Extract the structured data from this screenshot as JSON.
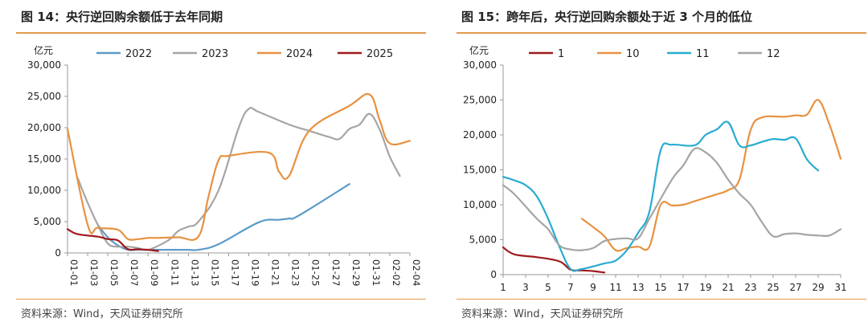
{
  "panels": [
    {
      "fig_title": "图 14：央行逆回购余额低于去年同期",
      "source": "资料来源：Wind，天风证券研究所"
    },
    {
      "fig_title": "图 15：跨年后，央行逆回购余额处于近 3 个月的低位",
      "source": "资料来源：Wind，天风证券研究所"
    }
  ],
  "chart_data": [
    {
      "type": "line",
      "title": "图 14：央行逆回购余额低于去年同期",
      "ylabel": "亿元",
      "xlabel": "",
      "ylim": [
        0,
        30000
      ],
      "yticks": [
        0,
        5000,
        10000,
        15000,
        20000,
        25000,
        30000
      ],
      "ytick_labels": [
        "0",
        "5,000",
        "10,000",
        "15,000",
        "20,000",
        "25,000",
        "30,000"
      ],
      "xticks": [
        "01-01",
        "01-03",
        "01-05",
        "01-07",
        "01-09",
        "01-11",
        "01-13",
        "01-15",
        "01-17",
        "01-19",
        "01-21",
        "01-23",
        "01-25",
        "01-27",
        "01-29",
        "01-31",
        "02-02",
        "02-04"
      ],
      "xtick_rotation": -90,
      "grid": false,
      "legend_position": "top",
      "series": [
        {
          "name": "2022",
          "color": "#5b9bc8",
          "points": [
            [
              4,
              4500
            ],
            [
              5,
              2500
            ],
            [
              6,
              1200
            ],
            [
              7,
              500
            ],
            [
              8,
              500
            ],
            [
              9,
              500
            ],
            [
              10,
              500
            ],
            [
              11,
              500
            ],
            [
              12,
              500
            ],
            [
              13,
              500
            ],
            [
              14,
              500
            ],
            [
              16,
              1400
            ],
            [
              20,
              4900
            ],
            [
              22,
              5300
            ],
            [
              23,
              5500
            ],
            [
              24,
              6000
            ],
            [
              29,
              11000
            ]
          ]
        },
        {
          "name": "2023",
          "color": "#a5a5a5",
          "points": [
            [
              2,
              12000
            ],
            [
              3,
              8000
            ],
            [
              4,
              4500
            ],
            [
              5,
              1500
            ],
            [
              6,
              1000
            ],
            [
              7,
              1000
            ],
            [
              8,
              800
            ],
            [
              9,
              500
            ],
            [
              11,
              2000
            ],
            [
              12,
              3500
            ],
            [
              13,
              4200
            ],
            [
              14,
              5000
            ],
            [
              16,
              10000
            ],
            [
              18,
              20000
            ],
            [
              19,
              23000
            ],
            [
              20,
              22500
            ],
            [
              23,
              20500
            ],
            [
              25,
              19500
            ],
            [
              27,
              18500
            ],
            [
              28,
              18200
            ],
            [
              29,
              19800
            ],
            [
              30,
              20500
            ],
            [
              31,
              22200
            ],
            [
              32,
              19700
            ],
            [
              33,
              15400
            ],
            [
              34,
              12300
            ]
          ]
        },
        {
          "name": "2024",
          "color": "#e8913f",
          "points": [
            [
              1,
              19800
            ],
            [
              3,
              4500
            ],
            [
              4,
              4000
            ],
            [
              6,
              3700
            ],
            [
              7,
              2200
            ],
            [
              8,
              2200
            ],
            [
              9,
              2400
            ],
            [
              10,
              2400
            ],
            [
              12,
              2500
            ],
            [
              14,
              2600
            ],
            [
              15,
              9000
            ],
            [
              16,
              14800
            ],
            [
              17,
              15500
            ],
            [
              21,
              16000
            ],
            [
              22,
              13000
            ],
            [
              23,
              12300
            ],
            [
              25,
              19500
            ],
            [
              29,
              23500
            ],
            [
              31,
              25300
            ],
            [
              32,
              21200
            ],
            [
              33,
              17500
            ],
            [
              35,
              17900
            ]
          ]
        },
        {
          "name": "2025",
          "color": "#a01a1e",
          "points": [
            [
              1,
              3800
            ],
            [
              2,
              3000
            ],
            [
              4,
              2600
            ],
            [
              5,
              2200
            ],
            [
              6,
              2000
            ],
            [
              7,
              600
            ],
            [
              8,
              600
            ],
            [
              9,
              500
            ],
            [
              10,
              300
            ]
          ]
        }
      ]
    },
    {
      "type": "line",
      "title": "图 15：跨年后，央行逆回购余额处于近 3 个月的低位",
      "ylabel": "亿元",
      "xlabel": "",
      "ylim": [
        0,
        30000
      ],
      "yticks": [
        0,
        5000,
        10000,
        15000,
        20000,
        25000,
        30000
      ],
      "ytick_labels": [
        "0",
        "5,000",
        "10,000",
        "15,000",
        "20,000",
        "25,000",
        "30,000"
      ],
      "xticks": [
        "1",
        "3",
        "5",
        "7",
        "9",
        "11",
        "13",
        "15",
        "17",
        "19",
        "21",
        "23",
        "25",
        "27",
        "29",
        "31"
      ],
      "xtick_rotation": 0,
      "grid": false,
      "legend_position": "top",
      "series": [
        {
          "name": "1",
          "color": "#a01a1e",
          "points": [
            [
              1,
              3900
            ],
            [
              2,
              2900
            ],
            [
              4,
              2500
            ],
            [
              6,
              1900
            ],
            [
              7,
              700
            ],
            [
              8,
              600
            ],
            [
              9,
              500
            ],
            [
              10,
              300
            ]
          ]
        },
        {
          "name": "10",
          "color": "#e8913f",
          "points": [
            [
              8,
              8000
            ],
            [
              9,
              6800
            ],
            [
              10,
              5500
            ],
            [
              11,
              3500
            ],
            [
              12,
              3800
            ],
            [
              13,
              4000
            ],
            [
              14,
              4000
            ],
            [
              15,
              10000
            ],
            [
              16,
              9900
            ],
            [
              17,
              10000
            ],
            [
              18,
              10500
            ],
            [
              19,
              11000
            ],
            [
              20,
              11500
            ],
            [
              21,
              12100
            ],
            [
              22,
              13600
            ],
            [
              23,
              20700
            ],
            [
              24,
              22500
            ],
            [
              26,
              22600
            ],
            [
              27,
              22800
            ],
            [
              28,
              22900
            ],
            [
              29,
              25000
            ],
            [
              30,
              21500
            ],
            [
              31,
              16600
            ]
          ]
        },
        {
          "name": "11",
          "color": "#29acd0",
          "points": [
            [
              1,
              14000
            ],
            [
              2,
              13500
            ],
            [
              3,
              12800
            ],
            [
              4,
              11200
            ],
            [
              5,
              8000
            ],
            [
              6,
              4000
            ],
            [
              7,
              800
            ],
            [
              8,
              800
            ],
            [
              10,
              1600
            ],
            [
              11,
              2000
            ],
            [
              12,
              3500
            ],
            [
              13,
              6000
            ],
            [
              14,
              9000
            ],
            [
              15,
              17800
            ],
            [
              16,
              18600
            ],
            [
              18,
              18500
            ],
            [
              19,
              20000
            ],
            [
              20,
              20800
            ],
            [
              21,
              21800
            ],
            [
              22,
              18500
            ],
            [
              23,
              18500
            ],
            [
              24,
              19000
            ],
            [
              25,
              19400
            ],
            [
              26,
              19300
            ],
            [
              27,
              19500
            ],
            [
              28,
              16500
            ],
            [
              29,
              14900
            ]
          ]
        },
        {
          "name": "12",
          "color": "#a5a5a5",
          "points": [
            [
              1,
              12800
            ],
            [
              2,
              11500
            ],
            [
              4,
              8000
            ],
            [
              5,
              6500
            ],
            [
              6,
              4200
            ],
            [
              7,
              3600
            ],
            [
              8,
              3500
            ],
            [
              9,
              3800
            ],
            [
              10,
              4800
            ],
            [
              11,
              5100
            ],
            [
              12,
              5200
            ],
            [
              13,
              5200
            ],
            [
              14,
              8000
            ],
            [
              16,
              13600
            ],
            [
              17,
              15600
            ],
            [
              18,
              18000
            ],
            [
              19,
              17500
            ],
            [
              20,
              16000
            ],
            [
              21,
              13600
            ],
            [
              22,
              11600
            ],
            [
              23,
              10000
            ],
            [
              24,
              7500
            ],
            [
              25,
              5500
            ],
            [
              26,
              5800
            ],
            [
              27,
              5900
            ],
            [
              28,
              5700
            ],
            [
              29,
              5600
            ],
            [
              30,
              5600
            ],
            [
              31,
              6500
            ]
          ]
        }
      ]
    }
  ]
}
